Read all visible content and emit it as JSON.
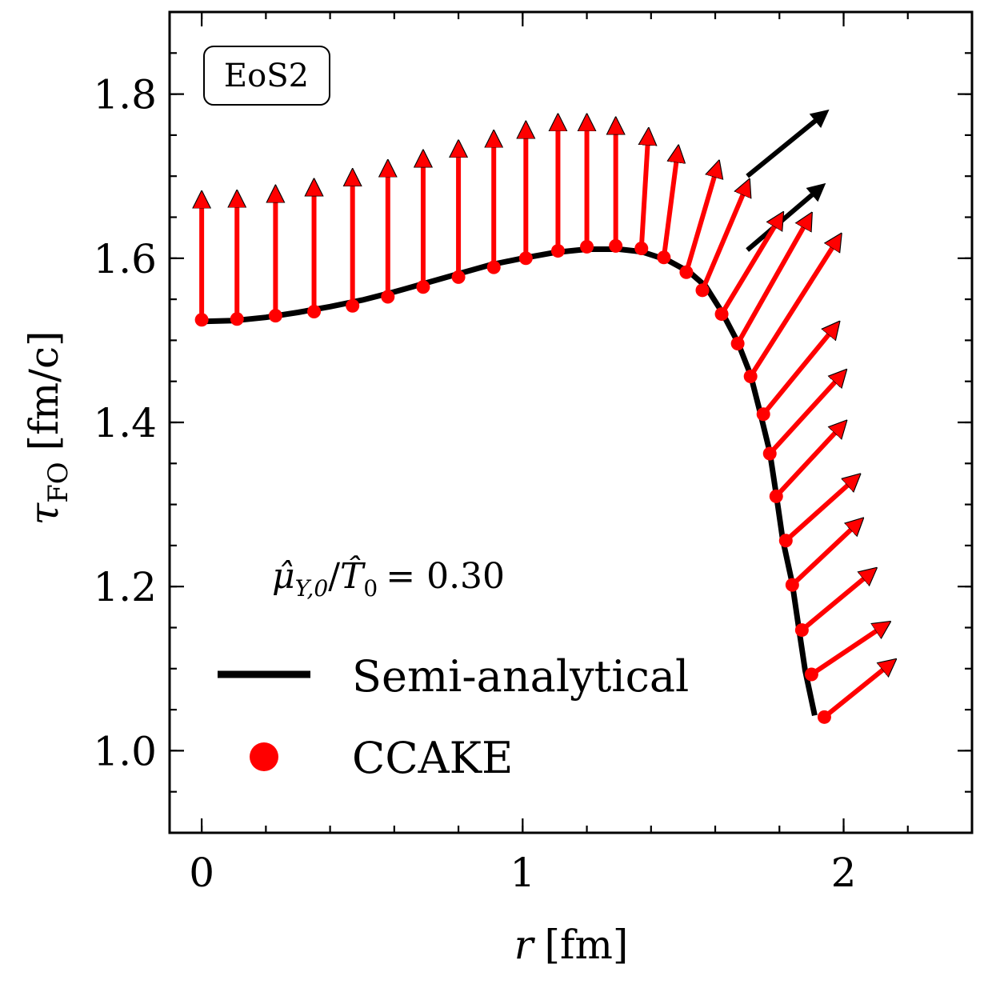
{
  "chart_data": {
    "type": "line+scatter+quiver",
    "xlabel": {
      "var": "r",
      "unit": "[fm]"
    },
    "ylabel": {
      "sym": "τ",
      "sub": "FO",
      "unit": "[fm/c]"
    },
    "xlim": [
      -0.1,
      2.4
    ],
    "ylim": [
      0.9,
      1.9
    ],
    "xticks": [
      0,
      1,
      2
    ],
    "xtick_labels": [
      "0",
      "1",
      "2"
    ],
    "yticks": [
      1.0,
      1.2,
      1.4,
      1.6,
      1.8
    ],
    "ytick_labels": [
      "1.0",
      "1.2",
      "1.4",
      "1.6",
      "1.8"
    ],
    "x_minor_step": 0.2,
    "y_minor_step": 0.05,
    "eos_label": "EoS2",
    "annotation": {
      "mu": "μ̂",
      "mu_sub": "Y,0",
      "T": "T̂",
      "T_sub": "0",
      "rhs": "= 0.30"
    },
    "legend": [
      "Semi-analytical",
      "CCAKE"
    ],
    "legend_position": "lower-left",
    "colors": {
      "semi": "#000000",
      "ccake": "#ff0000"
    },
    "series": [
      {
        "name": "Semi-analytical",
        "style": "line",
        "points": [
          [
            0,
            1.523
          ],
          [
            0.1,
            1.524
          ],
          [
            0.2,
            1.528
          ],
          [
            0.3,
            1.534
          ],
          [
            0.4,
            1.541
          ],
          [
            0.5,
            1.549
          ],
          [
            0.6,
            1.559
          ],
          [
            0.7,
            1.57
          ],
          [
            0.8,
            1.581
          ],
          [
            0.9,
            1.592
          ],
          [
            1.0,
            1.6
          ],
          [
            1.1,
            1.607
          ],
          [
            1.2,
            1.611
          ],
          [
            1.3,
            1.611
          ],
          [
            1.37,
            1.608
          ],
          [
            1.45,
            1.598
          ],
          [
            1.52,
            1.583
          ],
          [
            1.57,
            1.566
          ],
          [
            1.62,
            1.535
          ],
          [
            1.67,
            1.498
          ],
          [
            1.71,
            1.458
          ],
          [
            1.74,
            1.412
          ],
          [
            1.77,
            1.364
          ],
          [
            1.79,
            1.312
          ],
          [
            1.81,
            1.258
          ],
          [
            1.84,
            1.204
          ],
          [
            1.86,
            1.15
          ],
          [
            1.88,
            1.098
          ],
          [
            1.91,
            1.043
          ]
        ]
      },
      {
        "name": "CCAKE",
        "style": "scatter",
        "points": [
          [
            0.0,
            1.525
          ],
          [
            0.11,
            1.526
          ],
          [
            0.23,
            1.53
          ],
          [
            0.35,
            1.535
          ],
          [
            0.47,
            1.542
          ],
          [
            0.58,
            1.553
          ],
          [
            0.69,
            1.565
          ],
          [
            0.8,
            1.577
          ],
          [
            0.91,
            1.589
          ],
          [
            1.01,
            1.6
          ],
          [
            1.11,
            1.609
          ],
          [
            1.2,
            1.614
          ],
          [
            1.29,
            1.615
          ],
          [
            1.37,
            1.612
          ],
          [
            1.44,
            1.601
          ],
          [
            1.51,
            1.583
          ],
          [
            1.56,
            1.561
          ],
          [
            1.62,
            1.532
          ],
          [
            1.67,
            1.496
          ],
          [
            1.71,
            1.456
          ],
          [
            1.75,
            1.41
          ],
          [
            1.77,
            1.362
          ],
          [
            1.79,
            1.31
          ],
          [
            1.82,
            1.256
          ],
          [
            1.84,
            1.202
          ],
          [
            1.87,
            1.147
          ],
          [
            1.9,
            1.093
          ],
          [
            1.94,
            1.041
          ]
        ],
        "vectors": [
          [
            0.0,
            0.14
          ],
          [
            0.0,
            0.14
          ],
          [
            0.0,
            0.142
          ],
          [
            0.0,
            0.145
          ],
          [
            0.0,
            0.15
          ],
          [
            0.0,
            0.15
          ],
          [
            0.0,
            0.15
          ],
          [
            0.0,
            0.15
          ],
          [
            0.0,
            0.15
          ],
          [
            0.0,
            0.15
          ],
          [
            0.0,
            0.15
          ],
          [
            0.0,
            0.145
          ],
          [
            0.0,
            0.14
          ],
          [
            0.02,
            0.13
          ],
          [
            0.04,
            0.12
          ],
          [
            0.09,
            0.12
          ],
          [
            0.13,
            0.12
          ],
          [
            0.17,
            0.11
          ],
          [
            0.21,
            0.145
          ],
          [
            0.26,
            0.16
          ],
          [
            0.21,
            0.1
          ],
          [
            0.21,
            0.09
          ],
          [
            0.19,
            0.08
          ],
          [
            0.2,
            0.07
          ],
          [
            0.19,
            0.07
          ],
          [
            0.2,
            0.065
          ],
          [
            0.21,
            0.055
          ],
          [
            0.19,
            0.06
          ]
        ]
      },
      {
        "name": "Semi-analytical normals",
        "style": "quiver",
        "origins": [
          [
            1.7,
            1.61
          ],
          [
            1.7,
            1.7
          ]
        ],
        "vectors": [
          [
            0.21,
            0.07
          ],
          [
            0.22,
            0.07
          ]
        ]
      }
    ]
  }
}
